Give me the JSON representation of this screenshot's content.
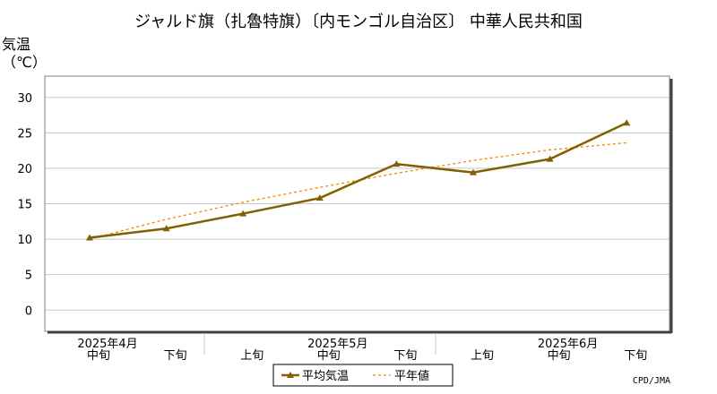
{
  "chart_data": {
    "type": "line",
    "title": "ジャルド旗（扎魯特旗）〔内モンゴル自治区〕 中華人民共和国",
    "ylabel_line1": "気温",
    "ylabel_line2": "（℃）",
    "credit": "CPD/JMA",
    "ylim": [
      -3,
      33
    ],
    "yticks": [
      0,
      5,
      10,
      15,
      20,
      25,
      30
    ],
    "categories": [
      "中旬",
      "下旬",
      "上旬",
      "中旬",
      "下旬",
      "上旬",
      "中旬",
      "下旬"
    ],
    "month_labels": [
      "2025年4月",
      "2025年5月",
      "2025年6月"
    ],
    "series": [
      {
        "name": "平均気温",
        "values": [
          10.2,
          11.5,
          13.6,
          15.8,
          20.6,
          19.4,
          21.3,
          26.4
        ],
        "color": "#806000"
      },
      {
        "name": "平年値",
        "values": [
          10.0,
          12.8,
          15.2,
          17.3,
          19.3,
          21.1,
          22.6,
          23.6
        ],
        "color": "#ff8000"
      }
    ],
    "grid": true
  }
}
